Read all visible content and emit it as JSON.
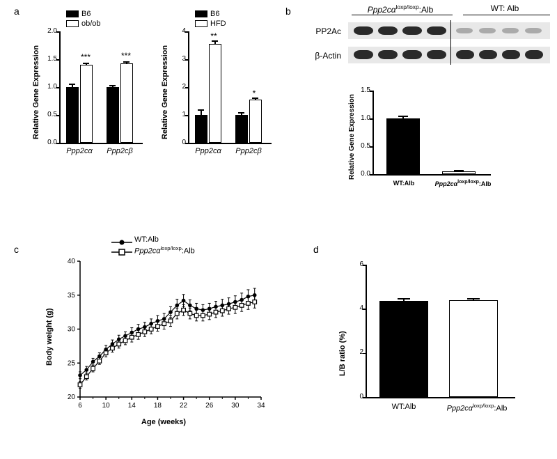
{
  "labels": {
    "a": "a",
    "b": "b",
    "c": "c",
    "d": "d",
    "relGeneExp": "Relative Gene Expression",
    "bodyWeight": "Body weight (g)",
    "age": "Age (weeks)",
    "lbRatio": "L/B ratio (%)",
    "ppp2ca": "Ppp2cα",
    "ppp2cb": "Ppp2cβ",
    "loxpAlb": "Ppp2cα",
    "loxpSup": "loxp/loxp",
    "albSuffix": ":Alb",
    "wtAlb": "WT:Alb",
    "wtAlbShort": "WT: Alb",
    "pp2ac": "PP2Ac",
    "bactin": "β-Actin",
    "b6": "B6",
    "obob": "ob/ob",
    "hfd": "HFD",
    "star1": "*",
    "star2": "**",
    "star3": "***"
  },
  "panelA1": {
    "ylim": [
      0,
      2.0
    ],
    "ytick": 0.5,
    "groups": [
      "Ppp2cα",
      "Ppp2cβ"
    ],
    "series": [
      {
        "name": "B6",
        "filled": true,
        "values": [
          1.0,
          1.0
        ],
        "err": [
          0.04,
          0.02
        ]
      },
      {
        "name": "ob/ob",
        "filled": false,
        "values": [
          1.4,
          1.42
        ],
        "err": [
          0.02,
          0.02
        ]
      }
    ],
    "sig": [
      "***",
      "***"
    ],
    "colors": {
      "filled": "#000000",
      "open": "#ffffff",
      "axis": "#000000"
    }
  },
  "panelA2": {
    "ylim": [
      0,
      4
    ],
    "ytick": 1,
    "groups": [
      "Ppp2cα",
      "Ppp2cβ"
    ],
    "series": [
      {
        "name": "B6",
        "filled": true,
        "values": [
          1.0,
          1.0
        ],
        "err": [
          0.2,
          0.1
        ]
      },
      {
        "name": "HFD",
        "filled": false,
        "values": [
          3.55,
          1.55
        ],
        "err": [
          0.12,
          0.05
        ]
      }
    ],
    "sig": [
      "**",
      "*"
    ],
    "colors": {
      "filled": "#000000",
      "open": "#ffffff",
      "axis": "#000000"
    }
  },
  "panelBchart": {
    "ylim": [
      0,
      1.5
    ],
    "ytick": 0.5,
    "cats": [
      "WT:Alb",
      "Ppp2cα loxp/loxp:Alb"
    ],
    "vals": [
      1.0,
      0.05
    ],
    "err": [
      0.03,
      0.01
    ],
    "filled": [
      true,
      false
    ]
  },
  "panelC": {
    "xlim": [
      6,
      34
    ],
    "xtick": 4,
    "ylim": [
      20,
      40
    ],
    "ytick": 5,
    "series": [
      {
        "name": "WT:Alb",
        "marker": "circle",
        "filled": true,
        "x": [
          6,
          7,
          8,
          9,
          10,
          11,
          12,
          13,
          14,
          15,
          16,
          17,
          18,
          19,
          20,
          21,
          22,
          23,
          24,
          25,
          26,
          27,
          28,
          29,
          30,
          31,
          32,
          33
        ],
        "y": [
          23.2,
          24.0,
          25.2,
          26.0,
          27.0,
          27.8,
          28.5,
          29.0,
          29.5,
          30.0,
          30.3,
          30.8,
          31.2,
          31.5,
          32.5,
          33.5,
          34.2,
          33.5,
          33.0,
          32.8,
          33.0,
          33.3,
          33.5,
          33.7,
          34.0,
          34.3,
          34.8,
          35.0
        ],
        "err": [
          0.5,
          0.5,
          0.5,
          0.5,
          0.6,
          0.6,
          0.6,
          0.6,
          0.7,
          0.7,
          0.7,
          0.7,
          0.8,
          0.8,
          0.8,
          0.9,
          0.9,
          0.8,
          0.8,
          0.8,
          0.8,
          0.8,
          0.9,
          0.9,
          0.9,
          1.0,
          1.0,
          1.0
        ]
      },
      {
        "name": "Ppp2cα loxp/loxp:Alb",
        "marker": "square",
        "filled": false,
        "x": [
          6,
          7,
          8,
          9,
          10,
          11,
          12,
          13,
          14,
          15,
          16,
          17,
          18,
          19,
          20,
          21,
          22,
          23,
          24,
          25,
          26,
          27,
          28,
          29,
          30,
          31,
          32,
          33
        ],
        "y": [
          21.8,
          23.0,
          24.2,
          25.3,
          26.5,
          27.2,
          27.8,
          28.3,
          28.8,
          29.2,
          29.6,
          30.0,
          30.4,
          30.8,
          31.2,
          32.3,
          32.8,
          32.3,
          32.0,
          32.0,
          32.2,
          32.5,
          32.7,
          33.0,
          33.2,
          33.5,
          33.8,
          34.0
        ],
        "err": [
          0.5,
          0.5,
          0.5,
          0.5,
          0.6,
          0.6,
          0.6,
          0.6,
          0.7,
          0.7,
          0.7,
          0.7,
          0.7,
          0.8,
          0.8,
          0.8,
          0.8,
          0.8,
          0.8,
          0.8,
          0.8,
          0.8,
          0.8,
          0.8,
          0.9,
          0.9,
          0.9,
          0.9
        ]
      }
    ]
  },
  "panelD": {
    "ylim": [
      0,
      6
    ],
    "ytick": 2,
    "cats": [
      "WT:Alb",
      "Ppp2cα loxp/loxp:Alb"
    ],
    "vals": [
      4.35,
      4.38
    ],
    "err": [
      0.08,
      0.05
    ],
    "filled": [
      true,
      false
    ]
  },
  "style": {
    "bg": "#ffffff",
    "axis": "#000000",
    "barFill": "#000000",
    "barOpen": "#ffffff",
    "barBorder": "#000000",
    "blotBg": "#e8e8e8",
    "blotBand": "#2a2a2a",
    "lineWidth": 1.5,
    "fontAxis": 11,
    "fontTick": 10
  }
}
